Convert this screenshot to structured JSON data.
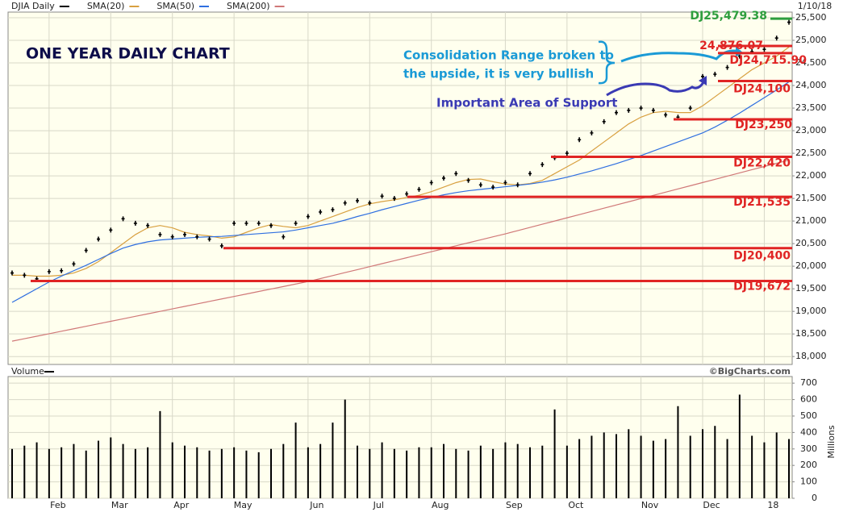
{
  "chart_data": [
    {
      "type": "line",
      "date": "1/10/18",
      "series": [
        {
          "name": "DJIA Daily",
          "color": "#000000",
          "marker": "tick",
          "values": [
            19850,
            19800,
            19720,
            19880,
            19900,
            20050,
            20350,
            20600,
            20800,
            21050,
            20950,
            20900,
            20700,
            20650,
            20700,
            20650,
            20600,
            20450,
            20950,
            20950,
            20950,
            20900,
            20650,
            20950,
            21100,
            21200,
            21250,
            21400,
            21450,
            21400,
            21550,
            21500,
            21600,
            21700,
            21850,
            21950,
            22050,
            21900,
            21800,
            21750,
            21850,
            21800,
            22050,
            22250,
            22400,
            22500,
            22800,
            22950,
            23200,
            23400,
            23450,
            23500,
            23450,
            23350,
            23300,
            23500,
            24200,
            24250,
            24400,
            24650,
            24750,
            24800,
            25050,
            25400
          ]
        },
        {
          "name": "SMA(20)",
          "color": "#d8a040",
          "values": [
            19800,
            19800,
            19780,
            19780,
            19800,
            19850,
            19950,
            20100,
            20300,
            20500,
            20700,
            20850,
            20900,
            20850,
            20750,
            20700,
            20670,
            20620,
            20650,
            20750,
            20850,
            20920,
            20880,
            20850,
            20900,
            21000,
            21100,
            21200,
            21300,
            21380,
            21430,
            21470,
            21520,
            21570,
            21650,
            21750,
            21850,
            21920,
            21930,
            21870,
            21820,
            21800,
            21830,
            21900,
            22050,
            22200,
            22350,
            22550,
            22750,
            22950,
            23150,
            23300,
            23400,
            23430,
            23400,
            23400,
            23550,
            23750,
            23950,
            24150,
            24350,
            24500,
            24650,
            24850
          ]
        },
        {
          "name": "SMA(50)",
          "color": "#2f6fe0",
          "values": [
            19200,
            19350,
            19500,
            19650,
            19780,
            19900,
            20020,
            20150,
            20280,
            20400,
            20480,
            20540,
            20580,
            20600,
            20620,
            20640,
            20650,
            20660,
            20680,
            20700,
            20720,
            20740,
            20760,
            20800,
            20850,
            20900,
            20950,
            21020,
            21100,
            21170,
            21250,
            21320,
            21390,
            21460,
            21520,
            21580,
            21630,
            21670,
            21700,
            21730,
            21760,
            21790,
            21820,
            21860,
            21910,
            21970,
            22040,
            22110,
            22190,
            22270,
            22360,
            22450,
            22550,
            22650,
            22750,
            22850,
            22950,
            23080,
            23230,
            23390,
            23560,
            23730,
            23900,
            24080
          ]
        },
        {
          "name": "SMA(200)",
          "color": "#d07878",
          "values": [
            18340,
            18395,
            18450,
            18505,
            18560,
            18615,
            18670,
            18725,
            18780,
            18835,
            18890,
            18945,
            19000,
            19055,
            19110,
            19165,
            19220,
            19275,
            19330,
            19385,
            19440,
            19495,
            19550,
            19605,
            19660,
            19726,
            19792,
            19858,
            19924,
            19990,
            20056,
            20122,
            20188,
            20254,
            20320,
            20386,
            20452,
            20518,
            20584,
            20650,
            20716,
            20787,
            20858,
            20929,
            21000,
            21071,
            21142,
            21213,
            21284,
            21355,
            21426,
            21497,
            21568,
            21639,
            21710,
            21781,
            21852,
            21923,
            21994,
            22065,
            22136,
            22207,
            22278,
            22349
          ]
        }
      ],
      "ylim": [
        17825,
        25625
      ],
      "yticks": [
        {
          "value": 18000,
          "label": "18,000"
        },
        {
          "value": 18500,
          "label": "18,500"
        },
        {
          "value": 19000,
          "label": "19,000"
        },
        {
          "value": 19500,
          "label": "19,500"
        },
        {
          "value": 20000,
          "label": "20,000"
        },
        {
          "value": 20500,
          "label": "20,500"
        },
        {
          "value": 21000,
          "label": "21,000"
        },
        {
          "value": 21500,
          "label": "21,500"
        },
        {
          "value": 22000,
          "label": "22,000"
        },
        {
          "value": 22500,
          "label": "22,500"
        },
        {
          "value": 23000,
          "label": "23,000"
        },
        {
          "value": 23500,
          "label": "23,500"
        },
        {
          "value": 24000,
          "label": "24,000"
        },
        {
          "value": 24500,
          "label": "24,500"
        },
        {
          "value": 25000,
          "label": "25,000"
        },
        {
          "value": 25500,
          "label": "25,500"
        }
      ],
      "grid": true,
      "levels": [
        {
          "value": 25479.38,
          "label": "DJ25,479.38",
          "color": "#2e9e3e"
        },
        {
          "value": 24876.07,
          "label": "24,876.07",
          "color": "#e02424"
        },
        {
          "value": 24715.9,
          "label": "DJ24,715.90",
          "color": "#e02424"
        },
        {
          "value": 24100,
          "label": "DJ24,100",
          "color": "#e02424"
        },
        {
          "value": 23250,
          "label": "DJ23,250",
          "color": "#e02424"
        },
        {
          "value": 22420,
          "label": "DJ22,420",
          "color": "#e02424"
        },
        {
          "value": 21535,
          "label": "DJ21,535",
          "color": "#e02424"
        },
        {
          "value": 20400,
          "label": "DJ20,400",
          "color": "#e02424"
        },
        {
          "value": 19672,
          "label": "DJ19,672",
          "color": "#e02424"
        }
      ],
      "annotations": [
        "ONE YEAR DAILY CHART",
        "Consolidation Range broken to",
        "the upside, it is very bullish",
        "Important Area of Support"
      ]
    },
    {
      "type": "bar",
      "title": "Volume",
      "source": "©BigCharts.com",
      "y_label": "Millions",
      "color": "#000000",
      "categories": [
        null,
        null,
        null,
        "Feb",
        null,
        null,
        null,
        null,
        "Mar",
        null,
        null,
        null,
        null,
        "Apr",
        null,
        null,
        null,
        null,
        "May",
        null,
        null,
        null,
        null,
        null,
        "Jun",
        null,
        null,
        null,
        null,
        "Jul",
        null,
        null,
        null,
        null,
        "Aug",
        null,
        null,
        null,
        null,
        null,
        "Sep",
        null,
        null,
        null,
        null,
        "Oct",
        null,
        null,
        null,
        null,
        null,
        "Nov",
        null,
        null,
        null,
        null,
        "Dec",
        null,
        null,
        null,
        null,
        "18",
        null,
        null
      ],
      "values": [
        300,
        320,
        340,
        300,
        310,
        330,
        290,
        350,
        370,
        330,
        300,
        310,
        530,
        340,
        320,
        310,
        290,
        300,
        310,
        290,
        280,
        300,
        330,
        460,
        310,
        330,
        460,
        600,
        320,
        300,
        340,
        300,
        290,
        310,
        310,
        330,
        300,
        290,
        320,
        300,
        340,
        330,
        310,
        320,
        540,
        320,
        360,
        380,
        400,
        390,
        420,
        380,
        350,
        360,
        560,
        380,
        420,
        440,
        360,
        630,
        380,
        340,
        400,
        360
      ],
      "ylim": [
        0,
        740
      ],
      "yticks": [
        0,
        100,
        200,
        300,
        400,
        500,
        600,
        700
      ],
      "grid": true
    }
  ]
}
